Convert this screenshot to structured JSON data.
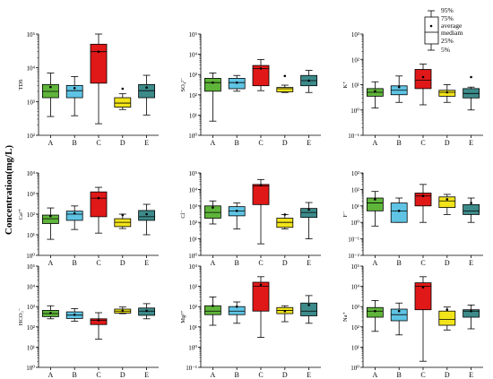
{
  "figure": {
    "ylabel": "Concentration(mg/L)",
    "legend_labels": [
      "95%",
      "75%",
      "average",
      "mediam",
      "25%",
      "5%"
    ]
  },
  "chart_data": [
    {
      "type": "box",
      "ylabel": "TDS",
      "log_scale": true,
      "ylim": [
        100,
        100000
      ],
      "y_ticks": [
        "10²",
        "10³",
        "10⁴",
        "10⁵"
      ],
      "categories": [
        "A",
        "B",
        "C",
        "D",
        "E"
      ],
      "colors": [
        "#5fb53a",
        "#5fc4e4",
        "#e01818",
        "#f2e41a",
        "#3d8a8a"
      ],
      "boxes": [
        {
          "p5": 360,
          "q1": 1300,
          "median": 2000,
          "q3": 3200,
          "p95": 7000,
          "mean": 2700
        },
        {
          "p5": 380,
          "q1": 1300,
          "median": 2100,
          "q3": 3000,
          "p95": 5500,
          "mean": 2500
        },
        {
          "p5": 220,
          "q1": 3500,
          "median": 30000,
          "q3": 50000,
          "p95": 100000,
          "mean": 30000
        },
        {
          "p5": 580,
          "q1": 680,
          "median": 900,
          "q3": 1300,
          "p95": 1700,
          "mean": 2400
        },
        {
          "p5": 400,
          "q1": 1300,
          "median": 2100,
          "q3": 3200,
          "p95": 6000,
          "mean": 2600
        }
      ]
    },
    {
      "type": "box",
      "ylabel": "SO₄²⁻",
      "log_scale": true,
      "ylim": [
        1,
        100000
      ],
      "y_ticks": [
        "10⁰",
        "10¹",
        "10²",
        "10³",
        "10⁴",
        "10⁵"
      ],
      "categories": [
        "A",
        "B",
        "C",
        "D",
        "E"
      ],
      "colors": [
        "#5fb53a",
        "#5fc4e4",
        "#e01818",
        "#f2e41a",
        "#3d8a8a"
      ],
      "boxes": [
        {
          "p5": 5,
          "q1": 150,
          "median": 400,
          "q3": 650,
          "p95": 1200,
          "mean": 400
        },
        {
          "p5": 150,
          "q1": 200,
          "median": 400,
          "q3": 650,
          "p95": 900,
          "mean": 400
        },
        {
          "p5": 160,
          "q1": 280,
          "median": 2000,
          "q3": 2800,
          "p95": 5500,
          "mean": 2000
        },
        {
          "p5": 130,
          "q1": 140,
          "median": 200,
          "q3": 230,
          "p95": 300,
          "mean": 850
        },
        {
          "p5": 130,
          "q1": 280,
          "median": 500,
          "q3": 900,
          "p95": 1600,
          "mean": 500
        }
      ]
    },
    {
      "type": "box",
      "ylabel": "K⁺",
      "log_scale": true,
      "ylim": [
        0.1,
        1000
      ],
      "y_ticks": [
        "10⁻¹",
        "10⁰",
        "10¹",
        "10²",
        "10³"
      ],
      "categories": [
        "A",
        "B",
        "C",
        "D",
        "E"
      ],
      "colors": [
        "#5fb53a",
        "#5fc4e4",
        "#e01818",
        "#f2e41a",
        "#3d8a8a"
      ],
      "boxes": [
        {
          "p5": 1.2,
          "q1": 3.5,
          "median": 5,
          "q3": 7,
          "p95": 13,
          "mean": 5.5
        },
        {
          "p5": 2,
          "q1": 4,
          "median": 6,
          "q3": 9,
          "p95": 22,
          "mean": 8
        },
        {
          "p5": 1.6,
          "q1": 7,
          "median": 15,
          "q3": 40,
          "p95": 65,
          "mean": 20
        },
        {
          "p5": 2,
          "q1": 3.5,
          "median": 5,
          "q3": 6,
          "p95": 10,
          "mean": 5
        },
        {
          "p5": 1,
          "q1": 3,
          "median": 4.5,
          "q3": 7,
          "p95": 8,
          "mean": 20
        }
      ]
    },
    {
      "type": "box",
      "ylabel": "Ca²⁺",
      "log_scale": true,
      "ylim": [
        1,
        10000
      ],
      "y_ticks": [
        "10⁰",
        "10¹",
        "10²",
        "10³",
        "10⁴"
      ],
      "categories": [
        "A",
        "B",
        "C",
        "D",
        "E"
      ],
      "colors": [
        "#5fb53a",
        "#5fc4e4",
        "#e01818",
        "#f2e41a",
        "#3d8a8a"
      ],
      "boxes": [
        {
          "p5": 6,
          "q1": 35,
          "median": 60,
          "q3": 90,
          "p95": 200,
          "mean": 80
        },
        {
          "p5": 18,
          "q1": 50,
          "median": 100,
          "q3": 140,
          "p95": 250,
          "mean": 110
        },
        {
          "p5": 12,
          "q1": 75,
          "median": 600,
          "q3": 1200,
          "p95": 2000,
          "mean": 600
        },
        {
          "p5": 20,
          "q1": 25,
          "median": 40,
          "q3": 60,
          "p95": 100,
          "mean": 90
        },
        {
          "p5": 10,
          "q1": 50,
          "median": 75,
          "q3": 150,
          "p95": 300,
          "mean": 100
        }
      ]
    },
    {
      "type": "box",
      "ylabel": "Cl⁻",
      "log_scale": true,
      "ylim": [
        1,
        100000
      ],
      "y_ticks": [
        "10⁰",
        "10¹",
        "10²",
        "10³",
        "10⁴",
        "10⁵"
      ],
      "categories": [
        "A",
        "B",
        "C",
        "D",
        "E"
      ],
      "colors": [
        "#5fb53a",
        "#5fc4e4",
        "#e01818",
        "#f2e41a",
        "#3d8a8a"
      ],
      "boxes": [
        {
          "p5": 80,
          "q1": 180,
          "median": 400,
          "q3": 1000,
          "p95": 2000,
          "mean": 800
        },
        {
          "p5": 40,
          "q1": 250,
          "median": 500,
          "q3": 900,
          "p95": 1500,
          "mean": 500
        },
        {
          "p5": 5,
          "q1": 1200,
          "median": 16000,
          "q3": 20000,
          "p95": 40000,
          "mean": 18000
        },
        {
          "p5": 40,
          "q1": 50,
          "median": 100,
          "q3": 180,
          "p95": 300,
          "mean": 300
        },
        {
          "p5": 10,
          "q1": 200,
          "median": 400,
          "q3": 700,
          "p95": 1600,
          "mean": 600
        }
      ]
    },
    {
      "type": "box",
      "ylabel": "F⁻",
      "log_scale": true,
      "ylim": [
        0.01,
        1000
      ],
      "y_ticks": [
        "10⁻²",
        "10⁻¹",
        "10⁰",
        "10¹",
        "10²",
        "10³"
      ],
      "categories": [
        "A",
        "B",
        "C",
        "D",
        "E"
      ],
      "colors": [
        "#5fb53a",
        "#5fc4e4",
        "#e01818",
        "#f2e41a",
        "#3d8a8a"
      ],
      "boxes": [
        {
          "p5": 0.6,
          "q1": 5,
          "median": 15,
          "q3": 30,
          "p95": 75,
          "mean": 25
        },
        {
          "p5": 1,
          "q1": 1,
          "median": 5,
          "q3": 15,
          "p95": 30,
          "mean": 5
        },
        {
          "p5": 1,
          "q1": 10,
          "median": 40,
          "q3": 60,
          "p95": 200,
          "mean": 40
        },
        {
          "p5": 3,
          "q1": 8,
          "median": 20,
          "q3": 35,
          "p95": 50,
          "mean": 25
        },
        {
          "p5": 1,
          "q1": 3,
          "median": 5,
          "q3": 12,
          "p95": 30,
          "mean": 15
        }
      ]
    },
    {
      "type": "box",
      "ylabel": "HCO₃⁻",
      "log_scale": true,
      "ylim": [
        1,
        100000
      ],
      "y_ticks": [
        "10⁰",
        "10¹",
        "10²",
        "10³",
        "10⁴",
        "10⁵"
      ],
      "categories": [
        "A",
        "B",
        "C",
        "D",
        "E"
      ],
      "colors": [
        "#5fb53a",
        "#5fc4e4",
        "#e01818",
        "#f2e41a",
        "#3d8a8a"
      ],
      "boxes": [
        {
          "p5": 250,
          "q1": 320,
          "median": 450,
          "q3": 650,
          "p95": 1100,
          "mean": 480
        },
        {
          "p5": 190,
          "q1": 260,
          "median": 380,
          "q3": 550,
          "p95": 800,
          "mean": 400
        },
        {
          "p5": 25,
          "q1": 130,
          "median": 210,
          "q3": 250,
          "p95": 500,
          "mean": 210
        },
        {
          "p5": 450,
          "q1": 480,
          "median": 600,
          "q3": 750,
          "p95": 950,
          "mean": 620
        },
        {
          "p5": 250,
          "q1": 370,
          "median": 600,
          "q3": 850,
          "p95": 1400,
          "mean": 620
        }
      ]
    },
    {
      "type": "box",
      "ylabel": "Mg²⁺",
      "log_scale": true,
      "ylim": [
        0.1,
        10000
      ],
      "y_ticks": [
        "10⁻¹",
        "10⁰",
        "10¹",
        "10²",
        "10³",
        "10⁴"
      ],
      "categories": [
        "A",
        "B",
        "C",
        "D",
        "E"
      ],
      "colors": [
        "#5fb53a",
        "#5fc4e4",
        "#e01818",
        "#f2e41a",
        "#3d8a8a"
      ],
      "boxes": [
        {
          "p5": 12,
          "q1": 40,
          "median": 60,
          "q3": 110,
          "p95": 300,
          "mean": 110
        },
        {
          "p5": 15,
          "q1": 40,
          "median": 60,
          "q3": 100,
          "p95": 170,
          "mean": 100
        },
        {
          "p5": 3,
          "q1": 60,
          "median": 1000,
          "q3": 1600,
          "p95": 3000,
          "mean": 1200
        },
        {
          "p5": 18,
          "q1": 45,
          "median": 65,
          "q3": 90,
          "p95": 110,
          "mean": 60
        },
        {
          "p5": 15,
          "q1": 35,
          "median": 60,
          "q3": 150,
          "p95": 350,
          "mean": 120
        }
      ]
    },
    {
      "type": "box",
      "ylabel": "Na⁺",
      "log_scale": true,
      "ylim": [
        1,
        100000
      ],
      "y_ticks": [
        "10⁰",
        "10¹",
        "10²",
        "10³",
        "10⁴",
        "10⁵"
      ],
      "categories": [
        "A",
        "B",
        "C",
        "D",
        "E"
      ],
      "colors": [
        "#5fb53a",
        "#5fc4e4",
        "#e01818",
        "#f2e41a",
        "#3d8a8a"
      ],
      "boxes": [
        {
          "p5": 60,
          "q1": 300,
          "median": 600,
          "q3": 900,
          "p95": 2000,
          "mean": 600
        },
        {
          "p5": 40,
          "q1": 200,
          "median": 400,
          "q3": 750,
          "p95": 1500,
          "mean": 600
        },
        {
          "p5": 2,
          "q1": 700,
          "median": 10000,
          "q3": 15000,
          "p95": 30000,
          "mean": 9000
        },
        {
          "p5": 70,
          "q1": 120,
          "median": 230,
          "q3": 600,
          "p95": 950,
          "mean": 700
        },
        {
          "p5": 80,
          "q1": 300,
          "median": 600,
          "q3": 700,
          "p95": 1200,
          "mean": 600
        }
      ]
    }
  ]
}
